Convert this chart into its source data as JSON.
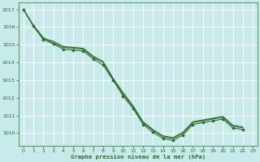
{
  "title": "Graphe pression niveau de la mer (hPa)",
  "bg_color": "#c8eaea",
  "grid_color": "#ffffff",
  "line_color": "#2d6a2d",
  "xlim": [
    -0.5,
    23.5
  ],
  "ylim": [
    1009.3,
    1017.4
  ],
  "yticks": [
    1010,
    1011,
    1012,
    1013,
    1014,
    1015,
    1016,
    1017
  ],
  "xticks": [
    0,
    1,
    2,
    3,
    4,
    5,
    6,
    7,
    8,
    9,
    10,
    11,
    12,
    13,
    14,
    15,
    16,
    17,
    18,
    19,
    20,
    21,
    22,
    23
  ],
  "series": [
    {
      "x": [
        0,
        1,
        2,
        3,
        4,
        5,
        6,
        7,
        8,
        9,
        10,
        11,
        12,
        13,
        14,
        15,
        16,
        17,
        18,
        19,
        20,
        21,
        22
      ],
      "y": [
        1017.0,
        1016.1,
        1015.35,
        1015.2,
        1014.9,
        1014.85,
        1014.8,
        1014.35,
        1014.05,
        1013.1,
        1012.3,
        1011.55,
        1010.65,
        1010.2,
        1009.85,
        1009.75,
        1010.05,
        1010.65,
        1010.75,
        1010.85,
        1010.95,
        1010.45,
        1010.35
      ],
      "markers": false
    },
    {
      "x": [
        0,
        1,
        2,
        3,
        4,
        5,
        6,
        7,
        8,
        9,
        10,
        11,
        12,
        13,
        14,
        15,
        16,
        17,
        18,
        19,
        20,
        21,
        22
      ],
      "y": [
        1017.0,
        1016.1,
        1015.4,
        1015.1,
        1014.85,
        1014.8,
        1014.75,
        1014.3,
        1014.0,
        1013.05,
        1012.2,
        1011.5,
        1010.6,
        1010.15,
        1009.8,
        1009.7,
        1010.0,
        1010.6,
        1010.7,
        1010.8,
        1010.9,
        1010.4,
        1010.3
      ],
      "markers": false
    },
    {
      "x": [
        0,
        1,
        2,
        3,
        4,
        5,
        6,
        7,
        8,
        9,
        10,
        11,
        12,
        13,
        14,
        15,
        16,
        17,
        18,
        19,
        20,
        21,
        22
      ],
      "y": [
        1017.0,
        1016.05,
        1015.3,
        1015.05,
        1014.75,
        1014.7,
        1014.65,
        1014.2,
        1013.85,
        1013.0,
        1012.1,
        1011.4,
        1010.5,
        1010.05,
        1009.7,
        1009.6,
        1009.9,
        1010.5,
        1010.6,
        1010.7,
        1010.8,
        1010.3,
        1010.2
      ],
      "markers": true
    }
  ]
}
